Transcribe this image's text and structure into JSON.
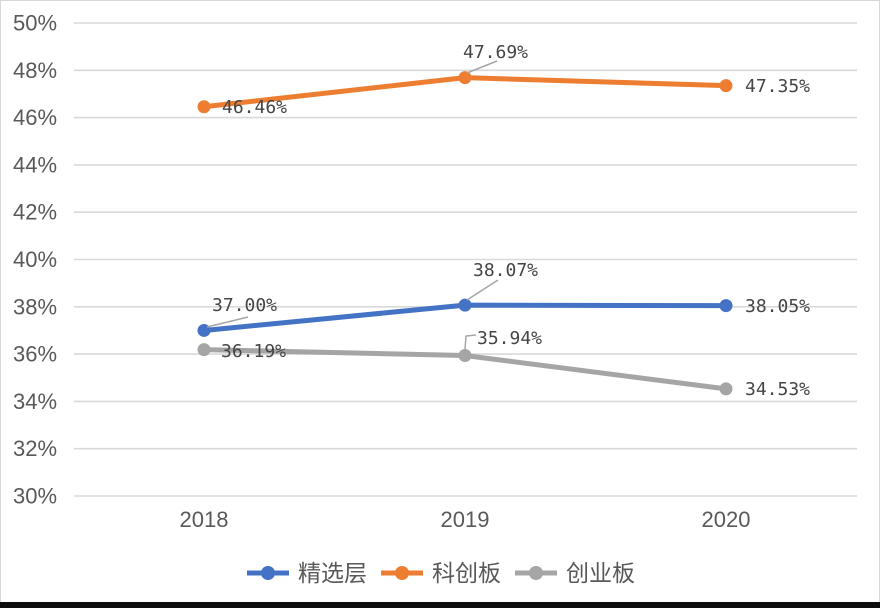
{
  "chart_data": {
    "type": "line",
    "title": "",
    "categories": [
      "2018",
      "2019",
      "2020"
    ],
    "series": [
      {
        "name": "精选层",
        "color": "#4472C4",
        "values": [
          37.0,
          38.07,
          38.05
        ],
        "labels": [
          "37.00%",
          "38.07%",
          "38.05%"
        ]
      },
      {
        "name": "科创板",
        "color": "#ED7D31",
        "values": [
          46.46,
          47.69,
          47.35
        ],
        "labels": [
          "46.46%",
          "47.69%",
          "47.35%"
        ]
      },
      {
        "name": "创业板",
        "color": "#A5A5A5",
        "values": [
          36.19,
          35.94,
          34.53
        ],
        "labels": [
          "36.19%",
          "35.94%",
          "34.53%"
        ]
      }
    ],
    "xlabel": "",
    "ylabel": "",
    "ylim": [
      30,
      50
    ],
    "ytick_step": 2,
    "yticks": [
      "50%",
      "48%",
      "46%",
      "44%",
      "42%",
      "40%",
      "38%",
      "36%",
      "34%",
      "32%",
      "30%"
    ],
    "grid": "horizontal",
    "legend_position": "bottom",
    "gridline_color": "#D9D9D9",
    "axis_label_color": "#595959",
    "data_label_color": "#454545",
    "leader_line_color": "#A6A6A6",
    "background_color": "#FFFFFF"
  }
}
